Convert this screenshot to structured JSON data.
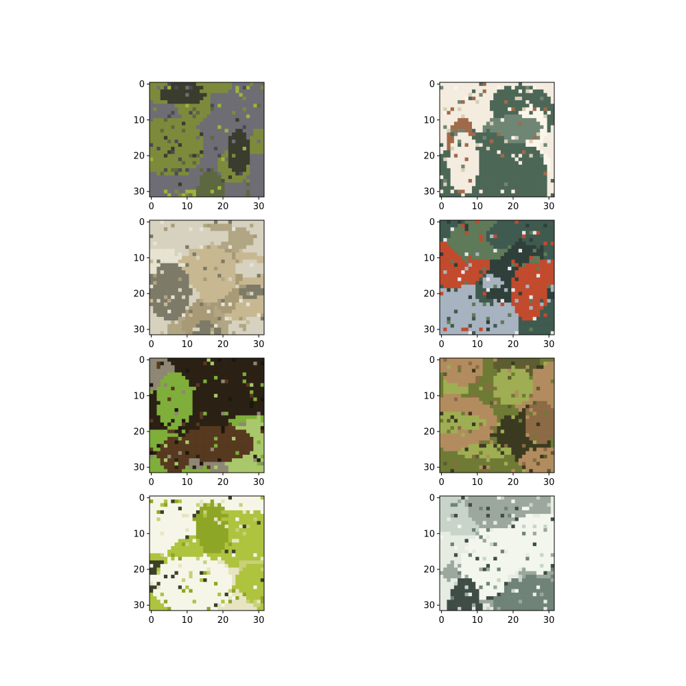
{
  "chart_data": {
    "type": "image-grid",
    "layout": {
      "rows": 4,
      "cols": 2
    },
    "axes": {
      "x": {
        "range": [
          -0.5,
          31.5
        ],
        "ticks": [
          0,
          10,
          20,
          30
        ]
      },
      "y": {
        "range": [
          31.5,
          -0.5
        ],
        "ticks": [
          0,
          10,
          20,
          30
        ],
        "inverted": true
      }
    },
    "panels": [
      {
        "palette": [
          "#7d8a3c",
          "#4a4b55",
          "#6e6d74",
          "#3a3c2e",
          "#9bb53a",
          "#5d6840"
        ]
      },
      {
        "palette": [
          "#f3ecdf",
          "#a06a4a",
          "#6f8675",
          "#4d6757",
          "#d9cdb6",
          "#fbf6ea"
        ]
      },
      {
        "palette": [
          "#d6d2bf",
          "#a89a76",
          "#c8b892",
          "#7d7a68",
          "#e7e3d2",
          "#b1a684"
        ]
      },
      {
        "palette": [
          "#3f5a4f",
          "#e6e6ec",
          "#5f7a58",
          "#c24a2d",
          "#2f3f3a",
          "#a7b3c0"
        ]
      },
      {
        "palette": [
          "#2a2014",
          "#57391f",
          "#7fae3a",
          "#a9c86b",
          "#8e8775",
          "#1c170e"
        ]
      },
      {
        "palette": [
          "#6f7a35",
          "#8c6a45",
          "#9fae52",
          "#5c5d30",
          "#b28c5e",
          "#3b3a20"
        ]
      },
      {
        "palette": [
          "#f6f6e8",
          "#aec33e",
          "#8ea626",
          "#3c4027",
          "#c8d079",
          "#e7e4c2"
        ]
      },
      {
        "palette": [
          "#e6ece2",
          "#6f8378",
          "#3f4d46",
          "#c8d4c9",
          "#f3f6ec",
          "#9ca79e"
        ]
      }
    ]
  }
}
